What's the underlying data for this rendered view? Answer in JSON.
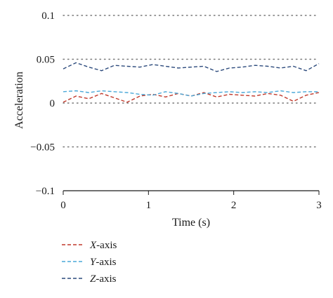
{
  "chart_data": {
    "type": "line",
    "title": "",
    "xlabel": "Time (s)",
    "ylabel": "Acceleration",
    "xlim": [
      0,
      3
    ],
    "ylim": [
      -0.1,
      0.1
    ],
    "x_ticks": [
      0,
      1,
      2,
      3
    ],
    "x_tick_labels": [
      "0",
      "1",
      "2",
      "3"
    ],
    "y_ticks": [
      0.1,
      0.05,
      0,
      -0.05,
      -0.1
    ],
    "y_tick_labels": [
      "0.1",
      "0.05",
      "0",
      "−0.05",
      "−0.1"
    ],
    "grid": "horizontal dotted",
    "legend_position": "bottom-left",
    "x": [
      0,
      0.15,
      0.3,
      0.45,
      0.6,
      0.75,
      0.9,
      1.05,
      1.2,
      1.35,
      1.5,
      1.65,
      1.8,
      1.95,
      2.1,
      2.25,
      2.4,
      2.55,
      2.7,
      2.85,
      3.0
    ],
    "series": [
      {
        "name": "X-axis",
        "name_italic": "X",
        "name_rest": "-axis",
        "color": "#c0392b",
        "values": [
          0.001,
          0.008,
          0.005,
          0.011,
          0.006,
          0.001,
          0.008,
          0.01,
          0.007,
          0.011,
          0.008,
          0.012,
          0.007,
          0.01,
          0.009,
          0.008,
          0.011,
          0.009,
          0.002,
          0.009,
          0.012
        ]
      },
      {
        "name": "Y-axis",
        "name_italic": "Y",
        "name_rest": "-axis",
        "color": "#4aa8d8",
        "values": [
          0.013,
          0.014,
          0.012,
          0.014,
          0.013,
          0.012,
          0.01,
          0.009,
          0.013,
          0.011,
          0.008,
          0.011,
          0.012,
          0.013,
          0.012,
          0.013,
          0.012,
          0.014,
          0.012,
          0.013,
          0.013
        ]
      },
      {
        "name": "Z-axis",
        "name_italic": "Z",
        "name_rest": "-axis",
        "color": "#2c4a7c",
        "values": [
          0.039,
          0.046,
          0.041,
          0.037,
          0.043,
          0.042,
          0.041,
          0.044,
          0.042,
          0.04,
          0.041,
          0.042,
          0.036,
          0.04,
          0.041,
          0.043,
          0.042,
          0.04,
          0.042,
          0.037,
          0.045
        ]
      }
    ]
  }
}
